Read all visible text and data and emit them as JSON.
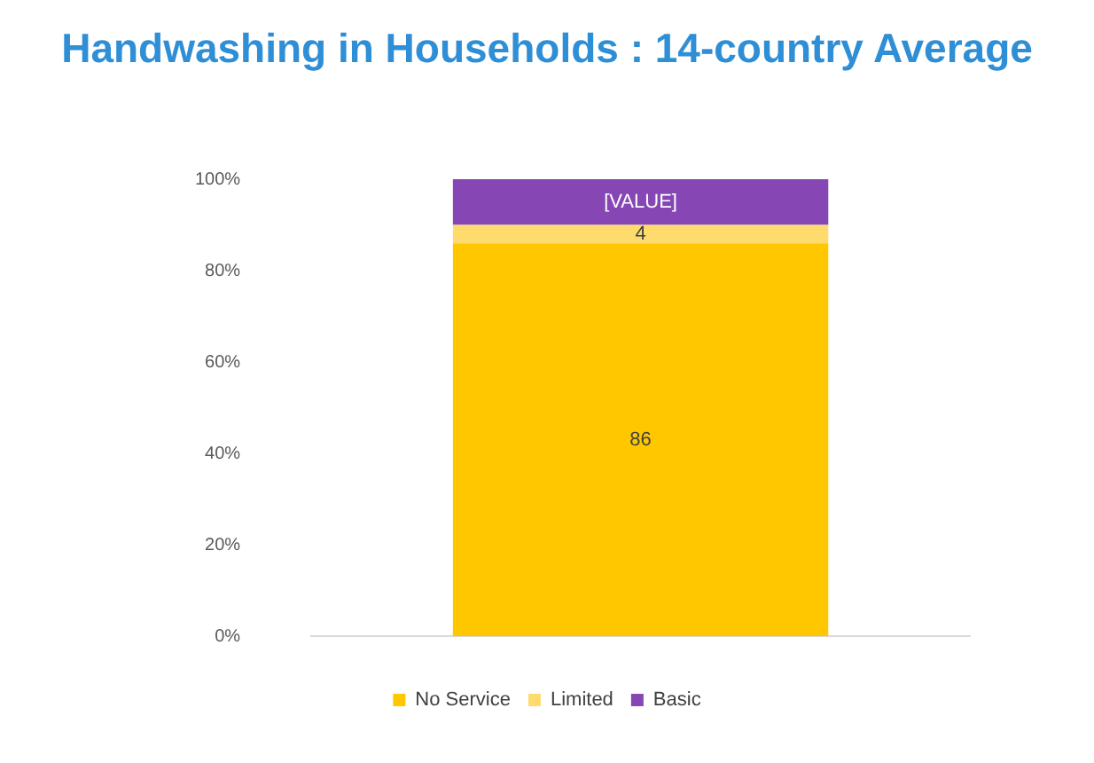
{
  "chart_data": {
    "type": "bar",
    "title": "Handwashing in Households : 14-country Average",
    "categories": [
      null
    ],
    "stacked": true,
    "ylim": [
      0,
      100
    ],
    "yticks": [
      {
        "value": 0,
        "label": "0%"
      },
      {
        "value": 20,
        "label": "20%"
      },
      {
        "value": 40,
        "label": "40%"
      },
      {
        "value": 60,
        "label": "60%"
      },
      {
        "value": 80,
        "label": "80%"
      },
      {
        "value": 100,
        "label": "100%"
      }
    ],
    "grid": false,
    "legend": "bottom",
    "series": [
      {
        "name": "No Service",
        "color": "#ffc700",
        "values": [
          86
        ],
        "value_labels": [
          "86"
        ]
      },
      {
        "name": "Limited",
        "color": "#ffdb6e",
        "values": [
          4
        ],
        "value_labels": [
          "4"
        ]
      },
      {
        "name": "Basic",
        "color": "#8646b4",
        "values": [
          10
        ],
        "value_labels": [
          "[VALUE]"
        ]
      }
    ]
  }
}
